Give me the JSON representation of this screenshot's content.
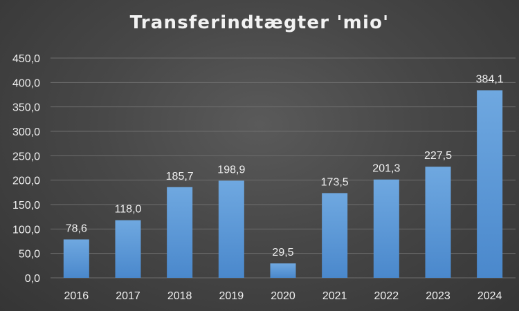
{
  "chart_data": {
    "type": "bar",
    "title": "Transferindtægter 'mio'",
    "xlabel": "",
    "ylabel": "",
    "categories": [
      "2016",
      "2017",
      "2018",
      "2019",
      "2020",
      "2021",
      "2022",
      "2023",
      "2024"
    ],
    "values": [
      78.6,
      118.0,
      185.7,
      198.9,
      29.5,
      173.5,
      201.3,
      227.5,
      384.1
    ],
    "data_labels": [
      "78,6",
      "118,0",
      "185,7",
      "198,9",
      "29,5",
      "173,5",
      "201,3",
      "227,5",
      "384,1"
    ],
    "ylim": [
      0,
      450
    ],
    "yticks": [
      0,
      50,
      100,
      150,
      200,
      250,
      300,
      350,
      400,
      450
    ],
    "ytick_labels": [
      "0,0",
      "50,0",
      "100,0",
      "150,0",
      "200,0",
      "250,0",
      "300,0",
      "350,0",
      "400,0",
      "450,0"
    ],
    "grid": true,
    "legend": "none",
    "colors": {
      "bar_top": "#6fa8e0",
      "bar_bottom": "#4a88cc",
      "gridline": "#6e6e6e",
      "text": "#f0f0f0"
    }
  }
}
